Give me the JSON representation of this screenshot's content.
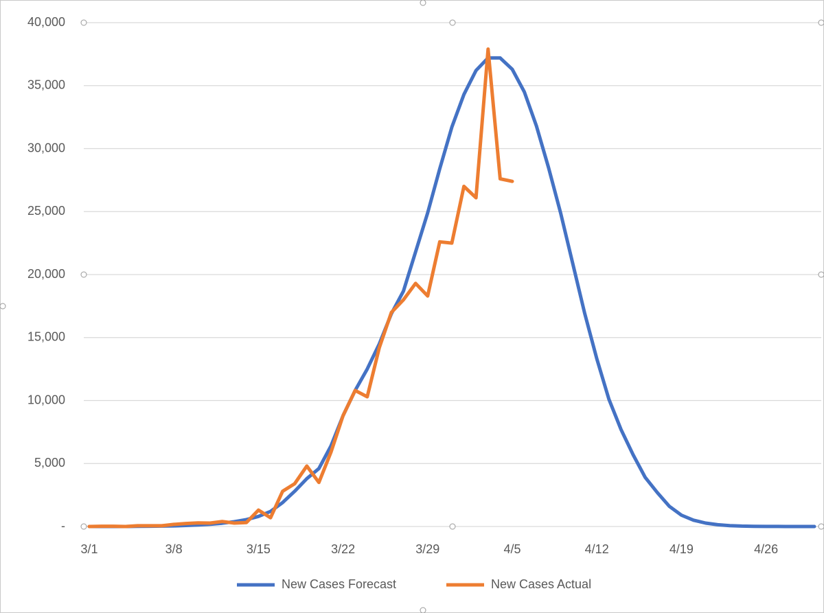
{
  "chart_data": {
    "type": "line",
    "categories": [
      "3/1",
      null,
      null,
      null,
      null,
      null,
      null,
      "3/8",
      null,
      null,
      null,
      null,
      null,
      null,
      "3/15",
      null,
      null,
      null,
      null,
      null,
      null,
      "3/22",
      null,
      null,
      null,
      null,
      null,
      null,
      "3/29",
      null,
      null,
      null,
      null,
      null,
      null,
      "4/5",
      null,
      null,
      null,
      null,
      null,
      null,
      "4/12",
      null,
      null,
      null,
      null,
      null,
      null,
      "4/19",
      null,
      null,
      null,
      null,
      null,
      null,
      "4/26",
      null,
      null,
      null,
      null
    ],
    "series": [
      {
        "name": "New Cases Forecast",
        "color": "#4472c4",
        "values": [
          0,
          0,
          0,
          0,
          10,
          20,
          30,
          50,
          80,
          120,
          180,
          260,
          380,
          550,
          800,
          1200,
          1900,
          2800,
          3800,
          4600,
          6400,
          8800,
          10800,
          12500,
          14500,
          16900,
          18700,
          21800,
          24900,
          28400,
          31700,
          34300,
          36200,
          37200,
          37200,
          36300,
          34500,
          31800,
          28500,
          24900,
          20900,
          16900,
          13300,
          10100,
          7700,
          5700,
          3900,
          2700,
          1600,
          900,
          500,
          270,
          140,
          70,
          35,
          15,
          7,
          3,
          1,
          0,
          0
        ]
      },
      {
        "name": "New Cases Actual",
        "color": "#ed7d31",
        "values": [
          0,
          20,
          20,
          0,
          60,
          60,
          60,
          170,
          240,
          290,
          270,
          400,
          270,
          310,
          1300,
          700,
          2800,
          3400,
          4800,
          3500,
          5900,
          8800,
          10800,
          10300,
          14200,
          17000,
          18000,
          19300,
          18300,
          22600,
          22500,
          27000,
          26100,
          37900,
          27600,
          27400,
          null,
          null,
          null,
          null,
          null,
          null,
          null,
          null,
          null,
          null,
          null,
          null,
          null,
          null,
          null,
          null,
          null,
          null,
          null,
          null,
          null,
          null,
          null,
          null,
          null
        ]
      }
    ],
    "ylim": [
      0,
      40000
    ],
    "yticks": [
      {
        "value": 0,
        "label": "-"
      },
      {
        "value": 5000,
        "label": "5,000"
      },
      {
        "value": 10000,
        "label": "10,000"
      },
      {
        "value": 15000,
        "label": "15,000"
      },
      {
        "value": 20000,
        "label": "20,000"
      },
      {
        "value": 25000,
        "label": "25,000"
      },
      {
        "value": 30000,
        "label": "30,000"
      },
      {
        "value": 35000,
        "label": "35,000"
      },
      {
        "value": 40000,
        "label": "40,000"
      }
    ],
    "grid": true,
    "legend": "bottom"
  }
}
